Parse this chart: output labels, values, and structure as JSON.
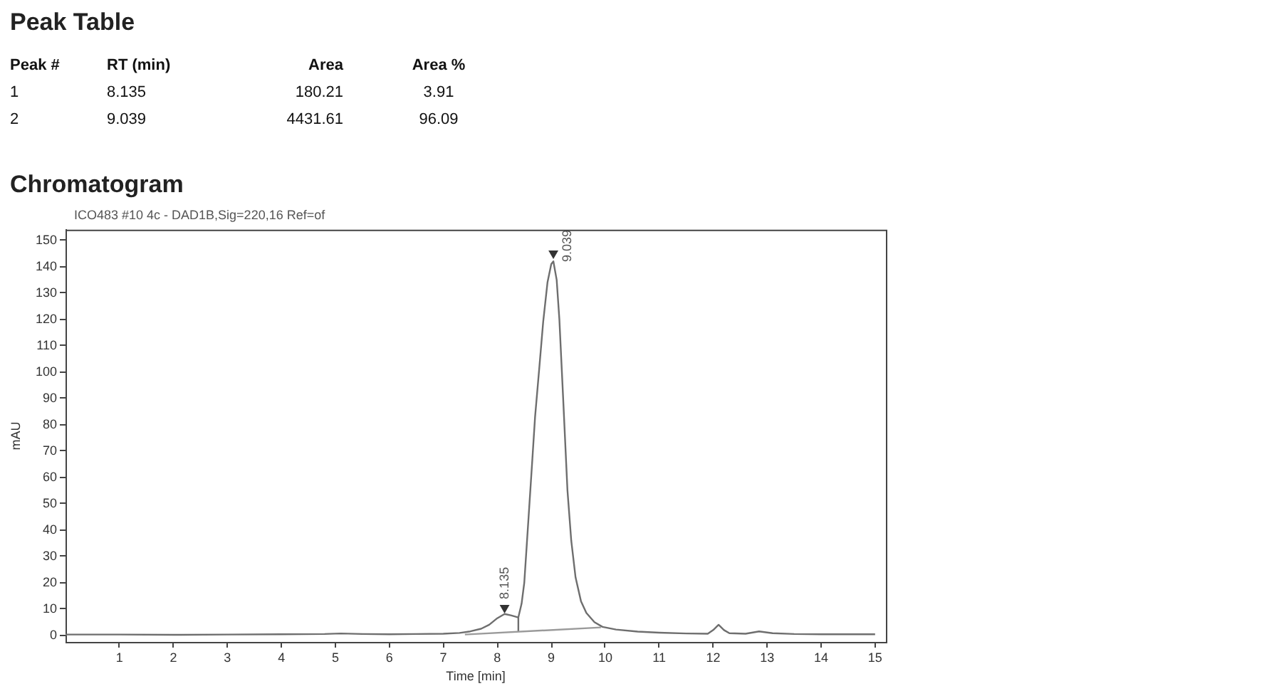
{
  "chart_data": [
    {
      "type": "other",
      "title": "Peak Table",
      "annotations": [
        "Peak #",
        "RT (min)",
        "Area",
        "Area %",
        "1",
        "8.135",
        "180.21",
        "3.91",
        "2",
        "9.039",
        "4431.61",
        "96.09"
      ]
    },
    {
      "type": "line",
      "title": "Chromatogram",
      "subtitle": "ICO483 #10 4c - DAD1B,Sig=220,16 Ref=of",
      "xlabel": "Time [min]",
      "ylabel": "mAU",
      "series": [
        {
          "color": "#6e6e6e",
          "x": [
            0,
            1,
            2,
            3,
            4,
            4.8,
            5.1,
            5.5,
            6,
            6.5,
            7,
            7.3,
            7.5,
            7.7,
            7.85,
            8.0,
            8.135,
            8.25,
            8.39,
            8.45,
            8.5,
            8.58,
            8.65,
            8.7,
            8.78,
            8.85,
            8.93,
            9.0,
            9.039,
            9.1,
            9.15,
            9.22,
            9.3,
            9.37,
            9.45,
            9.55,
            9.65,
            9.8,
            9.95,
            10.2,
            10.6,
            11,
            11.5,
            11.9,
            12.0,
            12.1,
            12.2,
            12.3,
            12.6,
            12.85,
            13.1,
            13.5,
            14,
            15
          ],
          "values": [
            0.3,
            0.3,
            0.2,
            0.3,
            0.4,
            0.5,
            0.7,
            0.5,
            0.4,
            0.5,
            0.6,
            0.9,
            1.5,
            2.5,
            4,
            6.5,
            8.1,
            7.6,
            6.8,
            12,
            20,
            45,
            67,
            83,
            102,
            119,
            134,
            141,
            142,
            135,
            120,
            90,
            55,
            36,
            22,
            13,
            8.5,
            5,
            3.2,
            2.2,
            1.4,
            1.0,
            0.7,
            0.6,
            2.0,
            4.0,
            2.0,
            0.8,
            0.6,
            1.5,
            0.8,
            0.5,
            0.4,
            0.4
          ]
        },
        {
          "color": "#9a9a9a",
          "x": [
            7.4,
            9.92
          ],
          "values": [
            0.3,
            3.0
          ]
        },
        {
          "color": "#6e6e6e",
          "x": [
            8.39,
            8.39
          ],
          "values": [
            1.4,
            6.8
          ]
        },
        {
          "type": "scatter",
          "marker": "triangle",
          "color": "#333333",
          "x": [
            8.135,
            9.039
          ],
          "values": [
            10.5,
            145
          ]
        }
      ],
      "xlim": [
        0,
        15.2
      ],
      "xticks": [
        1,
        2,
        3,
        4,
        5,
        6,
        7,
        8,
        9,
        10,
        11,
        12,
        13,
        14,
        15
      ],
      "ylim": [
        -2.5,
        154
      ],
      "yticks": [
        0,
        10,
        20,
        30,
        40,
        50,
        60,
        70,
        80,
        90,
        100,
        110,
        120,
        130,
        140,
        150
      ],
      "annotations": [
        {
          "text": "8.135",
          "x": 8.135,
          "y": 10.5
        },
        {
          "text": "9.039",
          "x": 9.039,
          "y": 145
        }
      ]
    }
  ]
}
